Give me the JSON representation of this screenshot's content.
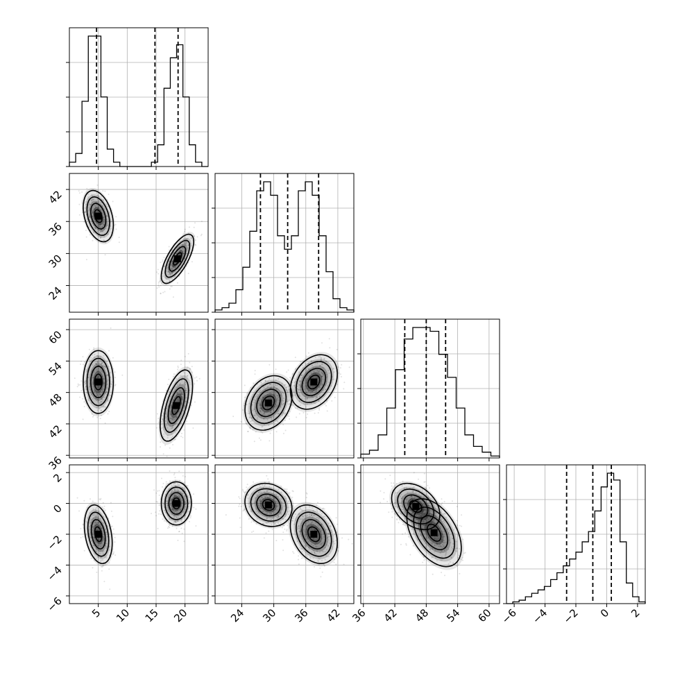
{
  "chart_data": {
    "type": "corner",
    "parameters": [
      {
        "key": "p0",
        "range": [
          0,
          24
        ],
        "ticks": [
          5,
          10,
          15,
          20
        ],
        "tick_labels": [
          "5",
          "10",
          "15",
          "20"
        ],
        "quantiles": [
          4.7,
          14.8,
          18.8
        ],
        "hist": {
          "edges_min": 0,
          "edges_max": 24,
          "counts": [
            1,
            3,
            15,
            30,
            30,
            16,
            4,
            1,
            0,
            0,
            0,
            0,
            0,
            1,
            5,
            18,
            25,
            28,
            16,
            5,
            1,
            0
          ]
        }
      },
      {
        "key": "p1",
        "range": [
          19,
          45
        ],
        "ticks": [
          24,
          30,
          36,
          42
        ],
        "tick_labels": [
          "24",
          "30",
          "36",
          "42"
        ],
        "quantiles": [
          27.5,
          32.6,
          38.4
        ],
        "hist": {
          "edges_min": 19,
          "edges_max": 45,
          "counts": [
            0.5,
            1,
            2,
            5,
            10,
            18,
            27,
            29,
            26,
            17,
            14,
            17,
            27,
            29,
            26,
            17,
            9,
            3,
            1,
            0.5
          ]
        }
      },
      {
        "key": "p2",
        "range": [
          35.5,
          62
        ],
        "ticks": [
          36,
          42,
          48,
          54,
          60
        ],
        "tick_labels": [
          "36",
          "42",
          "48",
          "54",
          "60"
        ],
        "quantiles": [
          43.9,
          48.0,
          51.7
        ],
        "hist": {
          "edges_min": 35.5,
          "edges_max": 62,
          "counts": [
            1,
            2,
            6,
            13,
            23,
            31,
            34,
            34,
            33,
            27,
            21,
            13,
            6,
            3,
            1.5,
            0.5
          ]
        }
      },
      {
        "key": "p3",
        "range": [
          -6.5,
          2.5
        ],
        "ticks": [
          -6,
          -4,
          -2,
          0,
          2
        ],
        "tick_labels": [
          "−6",
          "−4",
          "−2",
          "0",
          "2"
        ],
        "quantiles": [
          -2.6,
          -0.9,
          0.3
        ],
        "hist": {
          "edges_min": -6.5,
          "edges_max": 2.5,
          "counts": [
            0,
            0.5,
            1,
            2,
            3,
            4,
            5,
            7,
            9,
            11,
            13,
            15,
            18,
            21,
            27,
            34,
            38,
            36,
            18,
            6,
            2,
            0.5
          ]
        }
      }
    ],
    "hist_ytick_fractions": [
      0,
      0.25,
      0.5,
      0.75
    ],
    "pairs": [
      {
        "row": 1,
        "col": 0,
        "blobs": [
          {
            "mx": 5,
            "my": 37,
            "sx": 1.3,
            "sy": 2.4,
            "rho": -0.35
          },
          {
            "mx": 18.7,
            "my": 29,
            "sx": 1.4,
            "sy": 2.3,
            "rho": 0.7
          }
        ]
      },
      {
        "row": 2,
        "col": 0,
        "blobs": [
          {
            "mx": 5,
            "my": 50,
            "sx": 1.3,
            "sy": 3.0,
            "rho": 0.0
          },
          {
            "mx": 18.5,
            "my": 45.5,
            "sx": 1.4,
            "sy": 3.4,
            "rho": 0.55
          }
        ]
      },
      {
        "row": 2,
        "col": 1,
        "blobs": [
          {
            "mx": 29,
            "my": 46,
            "sx": 2.2,
            "sy": 2.6,
            "rho": 0.25
          },
          {
            "mx": 37.5,
            "my": 50,
            "sx": 2.2,
            "sy": 2.6,
            "rho": 0.3
          }
        ]
      },
      {
        "row": 3,
        "col": 0,
        "blobs": [
          {
            "mx": 5,
            "my": -2,
            "sx": 1.2,
            "sy": 0.95,
            "rho": -0.3
          },
          {
            "mx": 18.5,
            "my": 0,
            "sx": 1.3,
            "sy": 0.7,
            "rho": 0.0
          }
        ]
      },
      {
        "row": 3,
        "col": 1,
        "blobs": [
          {
            "mx": 29,
            "my": -0.1,
            "sx": 2.2,
            "sy": 0.7,
            "rho": -0.15
          },
          {
            "mx": 37.5,
            "my": -2,
            "sx": 2.2,
            "sy": 0.95,
            "rho": -0.3
          }
        ]
      },
      {
        "row": 3,
        "col": 2,
        "blobs": [
          {
            "mx": 46,
            "my": -0.2,
            "sx": 2.3,
            "sy": 0.75,
            "rho": -0.35
          },
          {
            "mx": 49.5,
            "my": -1.9,
            "sx": 2.6,
            "sy": 1.1,
            "rho": -0.45
          }
        ]
      }
    ],
    "contour_levels_sigma": [
      0.5,
      1.0,
      1.5,
      2.0
    ],
    "grid": true,
    "title": "",
    "axis_labels": []
  }
}
